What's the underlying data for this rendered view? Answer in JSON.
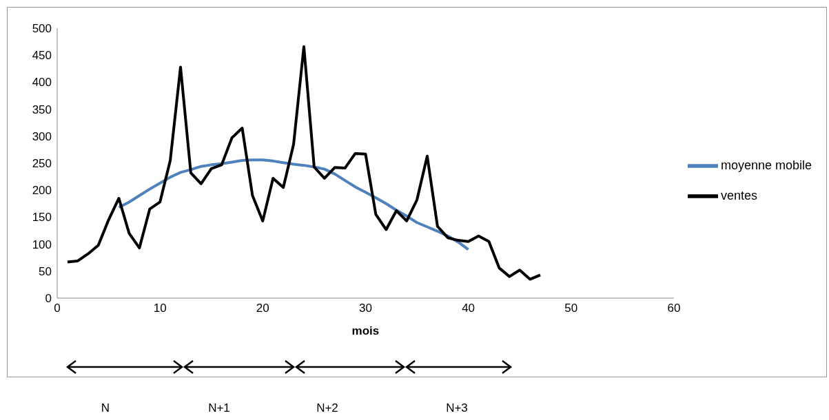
{
  "chart_data": {
    "type": "line",
    "xlabel": "mois",
    "xlim": [
      0,
      60
    ],
    "xticks": [
      0,
      10,
      20,
      30,
      40,
      50,
      60
    ],
    "ylim": [
      0,
      500
    ],
    "yticks": [
      0,
      50,
      100,
      150,
      200,
      250,
      300,
      350,
      400,
      450,
      500
    ],
    "grid": false,
    "legend": "right",
    "marker": "none",
    "line_style": "solid",
    "series": [
      {
        "name": "moyenne mobile",
        "color": "#4f81bd",
        "x": [
          6,
          7,
          8,
          9,
          10,
          11,
          12,
          13,
          14,
          15,
          16,
          17,
          18,
          19,
          20,
          21,
          22,
          23,
          24,
          25,
          26,
          27,
          28,
          29,
          30,
          31,
          32,
          33,
          34,
          35,
          36,
          37,
          38,
          39,
          40
        ],
        "values": [
          168,
          178,
          190,
          202,
          213,
          224,
          233,
          238,
          244,
          247,
          249,
          252,
          255,
          256,
          256,
          254,
          251,
          248,
          246,
          243,
          239,
          230,
          218,
          206,
          196,
          186,
          175,
          163,
          152,
          140,
          132,
          124,
          115,
          104,
          90
        ]
      },
      {
        "name": "ventes",
        "color": "#000000",
        "x": [
          1,
          2,
          3,
          4,
          5,
          6,
          7,
          8,
          9,
          10,
          11,
          12,
          13,
          14,
          15,
          16,
          17,
          18,
          19,
          20,
          21,
          22,
          23,
          24,
          25,
          26,
          27,
          28,
          29,
          30,
          31,
          32,
          33,
          34,
          35,
          36,
          37,
          38,
          39,
          40,
          41,
          42,
          43,
          44,
          45,
          46,
          47
        ],
        "values": [
          67,
          69,
          82,
          98,
          145,
          185,
          120,
          93,
          165,
          178,
          255,
          428,
          232,
          212,
          240,
          247,
          297,
          315,
          190,
          143,
          222,
          205,
          285,
          466,
          243,
          222,
          242,
          241,
          268,
          267,
          155,
          127,
          162,
          143,
          182,
          263,
          133,
          112,
          107,
          105,
          115,
          105,
          56,
          40,
          52,
          35,
          43
        ]
      }
    ],
    "annotations": [
      "N",
      "N+1",
      "N+2",
      "N+3"
    ]
  }
}
